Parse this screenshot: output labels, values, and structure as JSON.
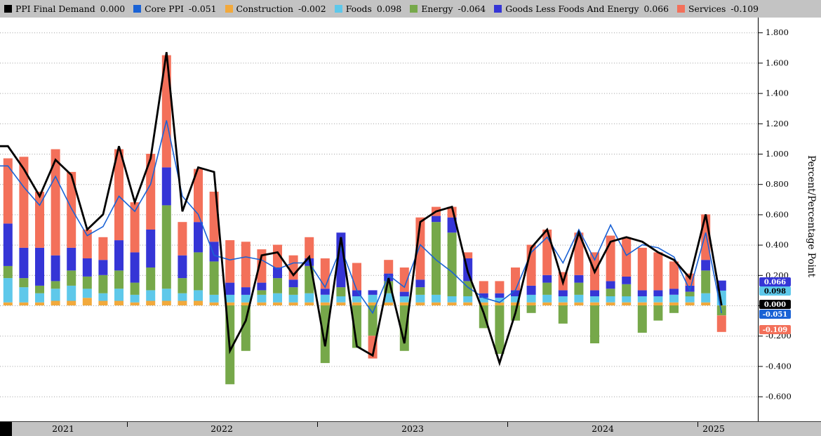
{
  "legend": {
    "items": [
      {
        "label": "PPI Final Demand",
        "value": "0.000",
        "color": "#000000"
      },
      {
        "label": "Core PPI",
        "value": "-0.051",
        "color": "#1a62d5"
      },
      {
        "label": "Construction",
        "value": "-0.002",
        "color": "#f2a93c"
      },
      {
        "label": "Foods",
        "value": "0.098",
        "color": "#5ec8ea"
      },
      {
        "label": "Energy",
        "value": "-0.064",
        "color": "#76a84a"
      },
      {
        "label": "Goods Less Foods And Energy",
        "value": "0.066",
        "color": "#3535d6"
      },
      {
        "label": "Services",
        "value": "-0.109",
        "color": "#f3705a"
      }
    ]
  },
  "badges": [
    {
      "text": "0.066",
      "bg": "#3535d6",
      "fg": "#ffffff"
    },
    {
      "text": "0.098",
      "bg": "#5ec8ea",
      "fg": "#000000"
    },
    {
      "text": "0.000",
      "bg": "#000000",
      "fg": "#ffffff"
    },
    {
      "text": "-0.051",
      "bg": "#1a62d5",
      "fg": "#ffffff"
    },
    {
      "text": "-0.109",
      "bg": "#f3705a",
      "fg": "#ffffff"
    }
  ],
  "chart_data": {
    "type": "stacked-bar-with-lines",
    "title": "",
    "ylabel": "Percent/Percentage Point",
    "ylim": [
      -0.65,
      1.85
    ],
    "grid": "horizontal-dotted",
    "legend_position": "top",
    "y_tick_labels": [
      "1.800",
      "1.600",
      "1.400",
      "1.200",
      "1.000",
      "0.800",
      "0.600",
      "0.400",
      "0.200",
      "0.000",
      "-0.200",
      "-0.400",
      "-0.600"
    ],
    "x_tick_labels": [
      "2021",
      "2022",
      "2023",
      "2024",
      "2025"
    ],
    "months": [
      "2021-05",
      "2021-06",
      "2021-07",
      "2021-08",
      "2021-09",
      "2021-10",
      "2021-11",
      "2021-12",
      "2022-01",
      "2022-02",
      "2022-03",
      "2022-04",
      "2022-05",
      "2022-06",
      "2022-07",
      "2022-08",
      "2022-09",
      "2022-10",
      "2022-11",
      "2022-12",
      "2023-01",
      "2023-02",
      "2023-03",
      "2023-04",
      "2023-05",
      "2023-06",
      "2023-07",
      "2023-08",
      "2023-09",
      "2023-10",
      "2023-11",
      "2023-12",
      "2024-01",
      "2024-02",
      "2024-03",
      "2024-04",
      "2024-05",
      "2024-06",
      "2024-07",
      "2024-08",
      "2024-09",
      "2024-10",
      "2024-11",
      "2024-12",
      "2025-01",
      "2025-02"
    ],
    "bar_series": [
      {
        "name": "Construction",
        "color": "#f2a93c",
        "values": [
          0.02,
          0.02,
          0.02,
          0.03,
          0.03,
          0.05,
          0.03,
          0.03,
          0.02,
          0.03,
          0.03,
          0.03,
          0.03,
          0.02,
          0.02,
          0.02,
          0.02,
          0.02,
          0.02,
          0.02,
          0.02,
          0.02,
          0.02,
          0.02,
          0.02,
          0.02,
          0.02,
          0.02,
          0.02,
          0.02,
          0.02,
          0.02,
          0.02,
          0.02,
          0.02,
          0.02,
          0.02,
          0.02,
          0.02,
          0.02,
          0.02,
          0.02,
          0.02,
          0.02,
          0.02,
          -0.002
        ]
      },
      {
        "name": "Foods",
        "color": "#5ec8ea",
        "values": [
          0.16,
          0.1,
          0.06,
          0.08,
          0.1,
          0.06,
          0.05,
          0.08,
          0.05,
          0.07,
          0.08,
          0.05,
          0.07,
          0.05,
          0.05,
          0.05,
          0.05,
          0.06,
          0.05,
          0.06,
          0.05,
          0.04,
          0.04,
          0.05,
          0.06,
          0.04,
          0.05,
          0.05,
          0.04,
          0.04,
          0.03,
          0.03,
          0.04,
          0.05,
          0.05,
          0.04,
          0.05,
          0.04,
          0.04,
          0.04,
          0.04,
          0.04,
          0.05,
          0.04,
          0.06,
          0.098
        ]
      },
      {
        "name": "Energy",
        "color": "#76a84a",
        "values": [
          0.08,
          0.06,
          0.05,
          0.05,
          0.1,
          0.08,
          0.12,
          0.12,
          0.08,
          0.15,
          0.55,
          0.1,
          0.25,
          0.22,
          -0.52,
          -0.3,
          0.03,
          0.1,
          0.05,
          0.18,
          -0.38,
          0.06,
          -0.28,
          -0.2,
          0.08,
          -0.3,
          0.05,
          0.48,
          0.42,
          0.1,
          -0.15,
          -0.32,
          -0.1,
          -0.05,
          0.08,
          -0.12,
          0.08,
          -0.25,
          0.05,
          0.08,
          -0.18,
          -0.1,
          -0.05,
          0.03,
          0.15,
          -0.064
        ]
      },
      {
        "name": "Goods Less Foods And Energy",
        "color": "#3535d6",
        "values": [
          0.28,
          0.2,
          0.25,
          0.17,
          0.15,
          0.12,
          0.1,
          0.2,
          0.2,
          0.25,
          0.25,
          0.15,
          0.2,
          0.13,
          0.08,
          0.05,
          0.05,
          0.07,
          0.05,
          0.05,
          0.04,
          0.36,
          0.04,
          0.03,
          0.05,
          0.03,
          0.05,
          0.04,
          0.1,
          0.15,
          0.03,
          0.03,
          0.04,
          0.06,
          0.05,
          0.04,
          0.05,
          0.04,
          0.05,
          0.05,
          0.04,
          0.04,
          0.04,
          0.04,
          0.07,
          0.066
        ]
      },
      {
        "name": "Services",
        "color": "#f3705a",
        "values": [
          0.43,
          0.6,
          0.37,
          0.7,
          0.5,
          0.19,
          0.15,
          0.6,
          0.33,
          0.5,
          0.74,
          0.22,
          0.35,
          0.33,
          0.28,
          0.3,
          0.22,
          0.15,
          0.16,
          0.14,
          0.2,
          0.0,
          0.18,
          -0.15,
          0.09,
          0.16,
          0.41,
          0.06,
          0.07,
          0.04,
          0.08,
          0.08,
          0.15,
          0.27,
          0.3,
          0.12,
          0.28,
          0.25,
          0.3,
          0.26,
          0.28,
          0.25,
          0.18,
          0.08,
          0.3,
          -0.109
        ]
      }
    ],
    "line_series": [
      {
        "name": "PPI Final Demand",
        "color": "#000000",
        "width": 2.8,
        "values": [
          1.05,
          0.9,
          0.72,
          0.96,
          0.86,
          0.5,
          0.6,
          1.05,
          0.68,
          0.97,
          1.67,
          0.62,
          0.91,
          0.88,
          -0.3,
          -0.1,
          0.33,
          0.35,
          0.2,
          0.32,
          -0.27,
          0.45,
          -0.27,
          -0.33,
          0.18,
          -0.25,
          0.55,
          0.62,
          0.65,
          0.22,
          -0.05,
          -0.38,
          -0.05,
          0.38,
          0.5,
          0.15,
          0.48,
          0.22,
          0.42,
          0.45,
          0.42,
          0.35,
          0.3,
          0.18,
          0.6,
          0.0
        ]
      },
      {
        "name": "Core PPI",
        "color": "#1a62d5",
        "width": 1.6,
        "values": [
          0.92,
          0.78,
          0.66,
          0.85,
          0.64,
          0.46,
          0.52,
          0.72,
          0.62,
          0.8,
          1.22,
          0.72,
          0.6,
          0.33,
          0.3,
          0.32,
          0.3,
          0.24,
          0.28,
          0.28,
          0.12,
          0.38,
          0.1,
          -0.05,
          0.2,
          0.12,
          0.4,
          0.3,
          0.22,
          0.12,
          0.05,
          0.02,
          0.1,
          0.35,
          0.45,
          0.28,
          0.5,
          0.3,
          0.53,
          0.33,
          0.4,
          0.38,
          0.32,
          0.1,
          0.48,
          -0.051
        ]
      }
    ]
  }
}
